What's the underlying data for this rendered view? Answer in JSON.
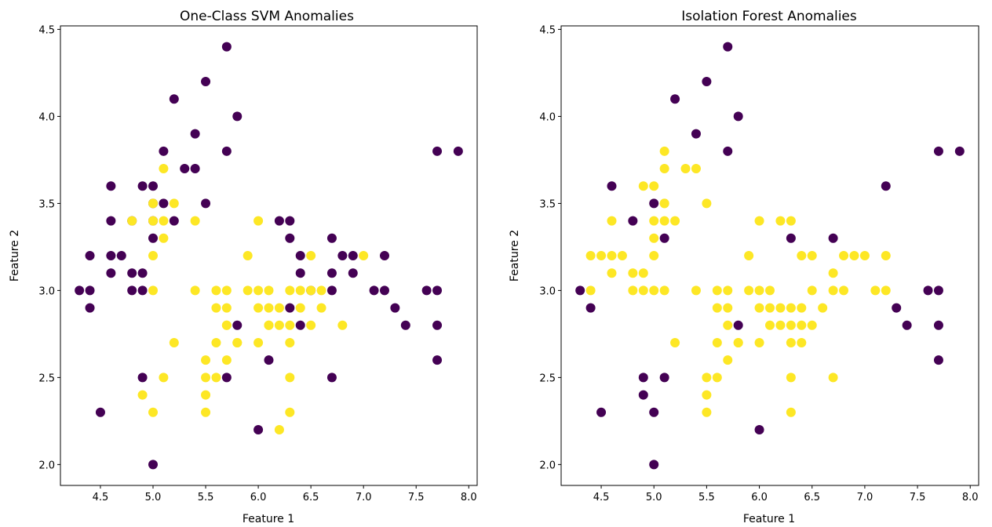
{
  "chart_data": [
    {
      "type": "scatter",
      "title": "One-Class SVM Anomalies",
      "xlabel": "Feature 1",
      "ylabel": "Feature 2",
      "xlim": [
        4.12,
        8.08
      ],
      "ylim": [
        1.88,
        4.52
      ],
      "xticks": [
        "4.5",
        "5.0",
        "5.5",
        "6.0",
        "6.5",
        "7.0",
        "7.5",
        "8.0"
      ],
      "yticks": [
        "2.0",
        "2.5",
        "3.0",
        "3.5",
        "4.0",
        "4.5"
      ],
      "grid": false,
      "colors": {
        "anomaly": "#440154",
        "normal": "#fde725"
      },
      "anomaly": {
        "x": [
          4.3,
          4.4,
          4.4,
          4.4,
          4.5,
          4.6,
          4.6,
          4.6,
          4.6,
          4.7,
          4.8,
          4.8,
          4.8,
          4.9,
          4.9,
          4.9,
          4.9,
          5.0,
          5.0,
          5.0,
          5.0,
          5.0,
          5.1,
          5.1,
          5.2,
          5.2,
          5.3,
          5.4,
          5.4,
          5.5,
          5.5,
          5.7,
          5.7,
          5.7,
          5.8,
          5.8,
          6.0,
          6.1,
          6.2,
          6.3,
          6.3,
          6.3,
          6.4,
          6.4,
          6.4,
          6.5,
          6.7,
          6.7,
          6.7,
          6.7,
          6.8,
          6.9,
          6.9,
          7.1,
          7.2,
          7.2,
          7.3,
          7.4,
          7.6,
          7.7,
          7.7,
          7.7,
          7.7,
          7.9
        ],
        "y": [
          3.0,
          2.9,
          3.0,
          3.2,
          2.3,
          3.1,
          3.2,
          3.4,
          3.6,
          3.2,
          3.0,
          3.1,
          3.4,
          2.5,
          3.0,
          3.1,
          3.6,
          2.0,
          3.3,
          3.5,
          3.6,
          3.4,
          3.5,
          3.8,
          3.4,
          4.1,
          3.7,
          3.7,
          3.9,
          3.5,
          4.2,
          2.5,
          3.8,
          4.4,
          2.8,
          4.0,
          2.2,
          2.6,
          3.4,
          2.9,
          3.3,
          3.4,
          2.8,
          3.1,
          3.2,
          3.0,
          3.0,
          3.1,
          3.3,
          2.5,
          3.2,
          3.1,
          3.2,
          3.0,
          3.0,
          3.2,
          2.9,
          2.8,
          3.0,
          2.6,
          2.8,
          3.0,
          3.8,
          3.8
        ]
      },
      "normal": {
        "x": [
          4.8,
          4.9,
          5.0,
          5.0,
          5.0,
          5.0,
          5.0,
          5.1,
          5.1,
          5.1,
          5.1,
          5.2,
          5.2,
          5.4,
          5.4,
          5.5,
          5.5,
          5.5,
          5.5,
          5.6,
          5.6,
          5.6,
          5.6,
          5.7,
          5.7,
          5.7,
          5.7,
          5.7,
          5.8,
          5.8,
          5.9,
          5.9,
          6.0,
          6.0,
          6.0,
          6.0,
          6.1,
          6.1,
          6.1,
          6.1,
          6.2,
          6.2,
          6.2,
          6.3,
          6.3,
          6.3,
          6.3,
          6.3,
          6.4,
          6.4,
          6.5,
          6.5,
          6.5,
          6.6,
          6.6,
          6.8,
          7.0
        ],
        "y": [
          3.4,
          2.4,
          2.3,
          3.0,
          3.2,
          3.4,
          3.5,
          2.5,
          3.3,
          3.4,
          3.7,
          2.7,
          3.5,
          3.0,
          3.4,
          2.3,
          2.4,
          2.5,
          2.6,
          2.5,
          2.7,
          2.9,
          3.0,
          2.6,
          2.8,
          2.9,
          3.0,
          2.8,
          2.7,
          2.7,
          3.0,
          3.2,
          2.7,
          2.9,
          3.0,
          3.4,
          2.8,
          2.9,
          3.0,
          2.8,
          2.2,
          2.8,
          2.9,
          2.3,
          2.5,
          2.7,
          2.8,
          3.0,
          2.9,
          3.0,
          2.8,
          3.0,
          3.2,
          2.9,
          3.0,
          2.8,
          3.2
        ]
      }
    },
    {
      "type": "scatter",
      "title": "Isolation Forest Anomalies",
      "xlabel": "Feature 1",
      "ylabel": "Feature 2",
      "xlim": [
        4.12,
        8.08
      ],
      "ylim": [
        1.88,
        4.52
      ],
      "xticks": [
        "4.5",
        "5.0",
        "5.5",
        "6.0",
        "6.5",
        "7.0",
        "7.5",
        "8.0"
      ],
      "yticks": [
        "2.0",
        "2.5",
        "3.0",
        "3.5",
        "4.0",
        "4.5"
      ],
      "grid": false,
      "colors": {
        "anomaly": "#440154",
        "normal": "#fde725"
      },
      "anomaly": {
        "x": [
          4.3,
          4.4,
          4.5,
          4.6,
          4.8,
          4.9,
          4.9,
          5.0,
          5.0,
          5.0,
          5.1,
          5.1,
          5.2,
          5.4,
          5.5,
          5.7,
          5.7,
          5.8,
          5.8,
          6.0,
          6.3,
          6.7,
          7.2,
          7.3,
          7.4,
          7.6,
          7.7,
          7.7,
          7.7,
          7.7,
          7.9
        ],
        "y": [
          3.0,
          2.9,
          2.3,
          3.6,
          3.4,
          2.4,
          2.5,
          2.0,
          2.3,
          3.5,
          2.5,
          3.3,
          4.1,
          3.9,
          4.2,
          3.8,
          4.4,
          2.8,
          4.0,
          2.2,
          3.3,
          3.3,
          3.6,
          2.9,
          2.8,
          3.0,
          2.6,
          2.8,
          3.0,
          3.8,
          3.8
        ]
      },
      "normal": {
        "x": [
          4.4,
          4.4,
          4.5,
          4.6,
          4.6,
          4.6,
          4.7,
          4.8,
          4.8,
          4.9,
          4.9,
          4.9,
          5.0,
          5.0,
          5.0,
          5.0,
          5.0,
          5.1,
          5.1,
          5.1,
          5.1,
          5.1,
          5.1,
          5.2,
          5.2,
          5.3,
          5.4,
          5.4,
          5.5,
          5.5,
          5.5,
          5.5,
          5.6,
          5.6,
          5.6,
          5.6,
          5.7,
          5.7,
          5.7,
          5.7,
          5.8,
          5.8,
          5.9,
          5.9,
          6.0,
          6.0,
          6.0,
          6.0,
          6.1,
          6.1,
          6.1,
          6.2,
          6.2,
          6.2,
          6.3,
          6.3,
          6.3,
          6.3,
          6.3,
          6.3,
          6.4,
          6.4,
          6.4,
          6.4,
          6.5,
          6.5,
          6.5,
          6.6,
          6.7,
          6.7,
          6.7,
          6.8,
          6.8,
          6.9,
          7.0,
          7.1,
          7.2,
          7.2
        ],
        "y": [
          3.0,
          3.2,
          3.2,
          3.1,
          3.2,
          3.4,
          3.2,
          3.0,
          3.1,
          3.0,
          3.1,
          3.6,
          3.0,
          3.2,
          3.3,
          3.4,
          3.6,
          3.4,
          3.5,
          3.7,
          3.8,
          3.5,
          3.0,
          3.4,
          2.7,
          3.7,
          3.0,
          3.7,
          2.3,
          2.4,
          2.5,
          3.5,
          2.7,
          2.9,
          3.0,
          2.5,
          2.8,
          2.9,
          3.0,
          2.6,
          2.7,
          2.7,
          3.0,
          3.2,
          2.7,
          2.9,
          3.0,
          3.4,
          2.8,
          2.9,
          3.0,
          2.8,
          2.9,
          3.4,
          2.3,
          2.5,
          2.7,
          2.8,
          2.9,
          3.4,
          2.7,
          2.8,
          2.9,
          3.2,
          2.8,
          3.0,
          3.2,
          2.9,
          2.5,
          3.0,
          3.1,
          3.0,
          3.2,
          3.2,
          3.2,
          3.0,
          3.0,
          3.2
        ]
      }
    }
  ]
}
